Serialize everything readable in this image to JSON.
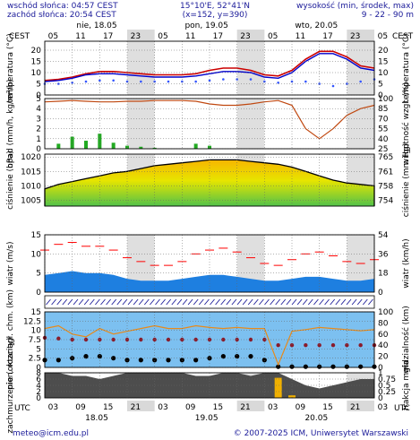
{
  "header": {
    "sunrise": "wschód słońca: 04:57 CEST",
    "sunset": "zachód słońca: 20:54 CEST",
    "coords": "15°10'E, 52°41'N",
    "grid": "(x=152, y=390)",
    "heights_title": "wysokość (min, środek, max)",
    "heights": "9 - 22 - 90 m"
  },
  "timezone_top": "CEST",
  "timezone_bottom": "UTC",
  "hours_top": [
    "05",
    "11",
    "17",
    "23",
    "05",
    "11",
    "17",
    "23",
    "05",
    "11",
    "17",
    "23",
    "05"
  ],
  "hours_bottom": [
    "03",
    "09",
    "15",
    "21",
    "03",
    "09",
    "15",
    "21",
    "03",
    "09",
    "15",
    "21",
    "03"
  ],
  "dates_top": [
    "nie, 18.05",
    "pon, 19.05",
    "wto, 20.05"
  ],
  "dates_bottom": [
    "18.05",
    "19.05",
    "20.05"
  ],
  "footer": {
    "contact": "meteo@icm.edu.pl",
    "copyright": "© 2007-2025 ICM, Uniwersytet Warszawski"
  },
  "colors": {
    "temp_max": "#cc0000",
    "temp_mid": "#0000cc",
    "humidity": "#c04810",
    "precip": "#22aa22",
    "pressure": "#000000",
    "wind_gust": "#ff0000",
    "wind_area": "#1e7fe0",
    "cloud_area": "#4d4d4d",
    "fog": "#f0b000",
    "night_band": "#d9d9d9"
  },
  "chart_data": [
    {
      "type": "line",
      "left_label": "temperatura (°C)",
      "right_label": "temperatura (°C)",
      "ylim": [
        0,
        24
      ],
      "yticks": [
        0,
        5,
        10,
        15,
        20
      ],
      "yticks_right": [
        0,
        5,
        10,
        15,
        20
      ],
      "x_hours_utc": [
        0,
        3,
        6,
        9,
        12,
        15,
        18,
        21,
        24,
        27,
        30,
        33,
        36,
        39,
        42,
        45,
        48,
        51,
        54,
        57,
        60,
        63,
        66,
        69,
        72
      ],
      "series": [
        {
          "values": [
            6.5,
            7,
            8,
            9.5,
            10.5,
            10.5,
            10,
            9.5,
            9,
            9,
            9,
            9.5,
            11,
            12,
            12,
            11,
            9,
            8.5,
            11,
            16,
            19.5,
            19.5,
            17,
            13,
            12
          ]
        },
        {
          "values": [
            6,
            6.5,
            7.5,
            9,
            9.5,
            9.5,
            9,
            8.5,
            8,
            8,
            8,
            8.5,
            9.5,
            10.5,
            10.5,
            10,
            8,
            7.5,
            10,
            15,
            18.5,
            18.5,
            16,
            12,
            11
          ]
        },
        {
          "values": [
            5,
            5,
            5.5,
            6,
            6.5,
            6.5,
            6,
            6,
            6,
            6,
            6,
            6,
            6.5,
            7,
            7,
            7,
            6,
            5.5,
            6,
            6,
            5,
            4,
            5,
            6,
            7
          ]
        }
      ]
    },
    {
      "type": "bar",
      "left_label": "opad (mm/h, kg/m²/h)",
      "right_label": "wilgotność wzgl. (%)",
      "ylim": [
        0,
        5
      ],
      "yticks": [
        0,
        1,
        2,
        3,
        4,
        5
      ],
      "yticks_right": [
        25,
        40,
        55,
        70,
        85,
        100
      ],
      "x_hours_utc": [
        0,
        3,
        6,
        9,
        12,
        15,
        18,
        21,
        24,
        27,
        30,
        33,
        36,
        39,
        42,
        45,
        48,
        51,
        54,
        57,
        60,
        63,
        66,
        69,
        72
      ],
      "series": [
        {
          "values": [
            0,
            0.5,
            1.2,
            0.8,
            1.5,
            0.6,
            0.3,
            0.2,
            0.1,
            0,
            0,
            0.5,
            0.3,
            0,
            0,
            0,
            0,
            0,
            0,
            0,
            0,
            0,
            0,
            0,
            0
          ]
        },
        {
          "values": [
            95,
            96,
            97,
            96,
            95,
            95,
            96,
            96,
            97,
            97,
            97,
            96,
            92,
            90,
            90,
            92,
            95,
            97,
            90,
            55,
            40,
            55,
            75,
            85,
            90
          ]
        }
      ]
    },
    {
      "type": "area",
      "left_label": "ciśnienie (hPa)",
      "right_label": "ciśnienie (mm Hg)",
      "ylim": [
        1003,
        1021
      ],
      "yticks": [
        1005,
        1010,
        1015,
        1020
      ],
      "yticks_right": [
        754,
        758,
        761,
        765
      ],
      "x_hours_utc": [
        0,
        3,
        6,
        9,
        12,
        15,
        18,
        21,
        24,
        27,
        30,
        33,
        36,
        39,
        42,
        45,
        48,
        51,
        54,
        57,
        60,
        63,
        66,
        69,
        72
      ],
      "series": [
        {
          "values": [
            1009,
            1010.5,
            1011.5,
            1012.5,
            1013.5,
            1014.5,
            1015,
            1016,
            1017,
            1017.5,
            1018,
            1018.5,
            1019,
            1019,
            1019,
            1018.5,
            1018,
            1017.5,
            1016.5,
            1015,
            1013.5,
            1012,
            1011,
            1010.5,
            1010
          ]
        }
      ]
    },
    {
      "type": "area",
      "left_label": "wiatr (m/s)",
      "right_label": "wiatr (km/h)",
      "ylim": [
        0,
        15
      ],
      "yticks": [
        0,
        5,
        10,
        15
      ],
      "yticks_right": [
        0,
        18,
        36,
        54
      ],
      "x_hours_utc": [
        0,
        3,
        6,
        9,
        12,
        15,
        18,
        21,
        24,
        27,
        30,
        33,
        36,
        39,
        42,
        45,
        48,
        51,
        54,
        57,
        60,
        63,
        66,
        69,
        72
      ],
      "series": [
        {
          "values": [
            4.5,
            5,
            5.5,
            5,
            5,
            4.5,
            3.5,
            3,
            3,
            3,
            3.5,
            4,
            4.5,
            4.5,
            4,
            3.5,
            3,
            3,
            3.5,
            4,
            4,
            3.5,
            3,
            3,
            3.5
          ]
        },
        {
          "values": [
            11,
            12.5,
            13,
            12,
            12,
            11,
            9,
            8,
            7,
            7,
            8,
            10,
            11,
            11.5,
            10.5,
            9,
            7.5,
            7,
            8.5,
            10,
            10.5,
            9.5,
            8,
            7.5,
            8.5
          ]
        }
      ]
    },
    {
      "type": "scatter",
      "left_label": "pion. rozciągł. chm. (km)",
      "right_label": "widzialność (km)",
      "ylim": [
        0,
        15
      ],
      "yticks": [
        0,
        2.5,
        5,
        7.5,
        10,
        12.5,
        15
      ],
      "yticks_right": [
        0,
        20,
        40,
        60,
        80,
        100
      ],
      "x_hours_utc": [
        0,
        3,
        6,
        9,
        12,
        15,
        18,
        21,
        24,
        27,
        30,
        33,
        36,
        39,
        42,
        45,
        48,
        51,
        54,
        57,
        60,
        63,
        66,
        69,
        72
      ],
      "series": [
        {
          "values": [
            8,
            7.8,
            7.5,
            7.5,
            7.5,
            7.5,
            7.5,
            7.5,
            7.5,
            7.5,
            7.5,
            7.5,
            7.5,
            7.5,
            7.5,
            7.5,
            7.5,
            6,
            6,
            6,
            6,
            6,
            6,
            6,
            6
          ]
        },
        {
          "values": [
            2,
            2,
            2.5,
            3,
            3,
            2.5,
            2,
            2,
            2,
            2,
            2,
            2,
            2.5,
            3,
            3,
            3,
            2,
            0.2,
            0.2,
            0.2,
            0.2,
            0.2,
            0.2,
            0.2,
            0.2
          ]
        },
        {
          "values": [
            70,
            75,
            60,
            55,
            70,
            60,
            65,
            70,
            75,
            70,
            70,
            75,
            72,
            70,
            72,
            70,
            70,
            5,
            65,
            68,
            72,
            70,
            68,
            66,
            68
          ]
        }
      ]
    },
    {
      "type": "area",
      "left_label": "zachmurzenie (oktanty)",
      "right_label": "frakcja mgła",
      "ylim": [
        0,
        8
      ],
      "yticks": [
        0,
        2,
        4,
        6,
        8
      ],
      "yticks_right": [
        0,
        0.25,
        0.5,
        0.75,
        1
      ],
      "x_hours_utc": [
        0,
        3,
        6,
        9,
        12,
        15,
        18,
        21,
        24,
        27,
        30,
        33,
        36,
        39,
        42,
        45,
        48,
        51,
        54,
        57,
        60,
        63,
        66,
        69,
        72
      ],
      "series": [
        {
          "values": [
            8,
            8,
            7,
            7,
            6,
            7,
            8,
            8,
            8,
            8,
            8,
            7,
            7,
            8,
            8,
            7,
            8,
            8,
            6,
            4,
            3,
            4,
            5,
            6,
            6
          ]
        },
        {
          "values": [
            0,
            0,
            0,
            0,
            0,
            0,
            0,
            0,
            0,
            0,
            0,
            0,
            0,
            0,
            0,
            0,
            0,
            0.8,
            0.1,
            0,
            0,
            0,
            0,
            0,
            0
          ]
        }
      ]
    }
  ]
}
